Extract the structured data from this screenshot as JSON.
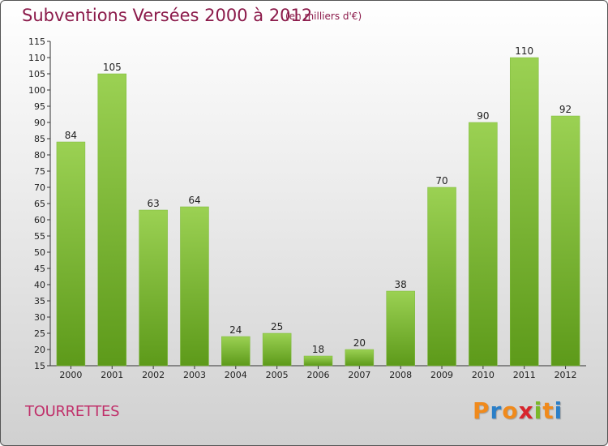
{
  "title": "Subventions Versées 2000 à 2012",
  "subtitle": "(en milliers d'€)",
  "commune": "TOURRETTES",
  "logo": {
    "letters": [
      "P",
      "r",
      "o",
      "x",
      "i",
      "t",
      "i"
    ],
    "colors": [
      "#f08a1c",
      "#2a7fc8",
      "#f08a1c",
      "#d8242c",
      "#7ab829",
      "#f08a1c",
      "#2a7fc8"
    ]
  },
  "colors": {
    "bar_top": "#9bd153",
    "bar_bottom": "#5d9a1a",
    "axis": "#333333",
    "title": "#8b1a4a",
    "commune": "#c0306a"
  },
  "chart_data": {
    "type": "bar",
    "title": "Subventions Versées 2000 à 2012",
    "subtitle": "(en milliers d'€)",
    "xlabel": "",
    "ylabel": "",
    "categories": [
      "2000",
      "2001",
      "2002",
      "2003",
      "2004",
      "2005",
      "2006",
      "2007",
      "2008",
      "2009",
      "2010",
      "2011",
      "2012"
    ],
    "values": [
      84,
      105,
      63,
      64,
      24,
      25,
      18,
      20,
      38,
      70,
      90,
      110,
      92
    ],
    "ylim": [
      15,
      115
    ],
    "yticks": [
      15,
      20,
      25,
      30,
      35,
      40,
      45,
      50,
      55,
      60,
      65,
      70,
      75,
      80,
      85,
      90,
      95,
      100,
      105,
      110,
      115
    ],
    "grid": false,
    "data_labels": true
  }
}
